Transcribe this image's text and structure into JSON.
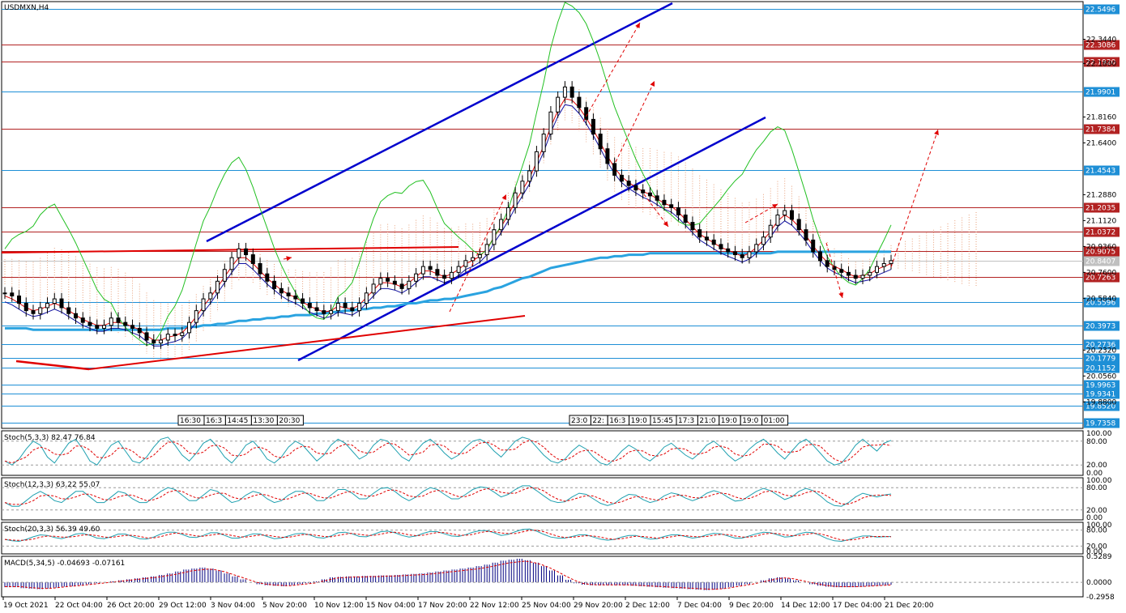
{
  "symbol": "USDMXN,H4",
  "chart_data": {
    "type": "candlestick",
    "title": "USDMXN,H4",
    "ylim": [
      19.7,
      22.6
    ],
    "price_ticks": [
      "22.3440",
      "22.1800",
      "21.8160",
      "21.6400",
      "21.2880",
      "21.1120",
      "20.9360",
      "20.7600",
      "20.5840",
      "20.2320",
      "20.0560",
      "19.8800"
    ],
    "levels": [
      {
        "price": "22.5496",
        "color": "#1e8fd6"
      },
      {
        "price": "22.3086",
        "color": "#b22222"
      },
      {
        "price": "22.1920",
        "color": "#b22222"
      },
      {
        "price": "21.9901",
        "color": "#1e8fd6"
      },
      {
        "price": "21.7384",
        "color": "#b22222"
      },
      {
        "price": "21.4543",
        "color": "#1e8fd6"
      },
      {
        "price": "21.2035",
        "color": "#b22222"
      },
      {
        "price": "21.0372",
        "color": "#b22222"
      },
      {
        "price": "20.9075",
        "color": "#b22222"
      },
      {
        "price": "20.8407",
        "color": "#c0c0c0"
      },
      {
        "price": "20.7263",
        "color": "#b22222"
      },
      {
        "price": "20.5596",
        "color": "#1e8fd6"
      },
      {
        "price": "20.3973",
        "color": "#1e8fd6"
      },
      {
        "price": "20.2736",
        "color": "#1e8fd6"
      },
      {
        "price": "20.1779",
        "color": "#1e8fd6"
      },
      {
        "price": "20.1152",
        "color": "#1e8fd6"
      },
      {
        "price": "19.9963",
        "color": "#1e8fd6"
      },
      {
        "price": "19.9341",
        "color": "#1e8fd6"
      },
      {
        "price": "19.8520",
        "color": "#1e8fd6"
      },
      {
        "price": "19.7358",
        "color": "#1e8fd6"
      }
    ],
    "x_labels": [
      "19 Oct 2021",
      "22 Oct 04:00",
      "26 Oct 20:00",
      "29 Oct 12:00",
      "3 Nov 04:00",
      "5 Nov 20:00",
      "10 Nov 12:00",
      "15 Nov 04:00",
      "17 Nov 20:00",
      "22 Nov 12:00",
      "25 Nov 04:00",
      "29 Nov 20:00",
      "2 Dec 12:00",
      "7 Dec 04:00",
      "9 Dec 20:00",
      "14 Dec 12:00",
      "17 Dec 04:00",
      "21 Dec 20:00"
    ],
    "time_tags_left": [
      "16:30",
      "16:3",
      "14:45",
      "13:30",
      "20:30"
    ],
    "time_tags_right": [
      "23:0",
      "22:",
      "16:3",
      "19:0",
      "15:45",
      "17:3",
      "21:0",
      "19:0",
      "19:0",
      "01:00"
    ],
    "close": [
      20.62,
      20.6,
      20.55,
      20.5,
      20.48,
      20.52,
      20.55,
      20.58,
      20.52,
      20.48,
      20.45,
      20.42,
      20.4,
      20.38,
      20.4,
      20.45,
      20.42,
      20.4,
      20.38,
      20.35,
      20.3,
      20.28,
      20.3,
      20.34,
      20.33,
      20.35,
      20.42,
      20.5,
      20.58,
      20.62,
      20.7,
      20.78,
      20.86,
      20.92,
      20.88,
      20.82,
      20.75,
      20.7,
      20.65,
      20.62,
      20.6,
      20.58,
      20.55,
      20.52,
      20.5,
      20.48,
      20.5,
      20.55,
      20.52,
      20.5,
      20.55,
      20.62,
      20.68,
      20.72,
      20.7,
      20.68,
      20.65,
      20.7,
      20.75,
      20.8,
      20.78,
      20.74,
      20.72,
      20.76,
      20.8,
      20.84,
      20.86,
      20.88,
      20.95,
      21.05,
      21.12,
      21.2,
      21.3,
      21.38,
      21.45,
      21.58,
      21.7,
      21.85,
      21.95,
      22.02,
      21.95,
      21.88,
      21.8,
      21.7,
      21.6,
      21.5,
      21.42,
      21.38,
      21.35,
      21.32,
      21.3,
      21.28,
      21.25,
      21.22,
      21.2,
      21.15,
      21.1,
      21.05,
      21.0,
      20.98,
      20.95,
      20.92,
      20.9,
      20.88,
      20.86,
      20.9,
      20.95,
      21.0,
      21.08,
      21.15,
      21.18,
      21.12,
      21.05,
      20.98,
      20.9,
      20.84,
      20.8,
      20.78,
      20.76,
      20.74,
      20.72,
      20.74,
      20.76,
      20.8,
      20.82,
      20.84
    ],
    "ma_fast": [
      20.6,
      20.58,
      20.55,
      20.52,
      20.5,
      20.51,
      20.53,
      20.55,
      20.53,
      20.5,
      20.47,
      20.44,
      20.42,
      20.4,
      20.4,
      20.42,
      20.42,
      20.41,
      20.39,
      20.37,
      20.33,
      20.3,
      20.3,
      20.32,
      20.33,
      20.35,
      20.4,
      20.46,
      20.53,
      20.59,
      20.66,
      20.73,
      20.8,
      20.86,
      20.86,
      20.82,
      20.77,
      20.72,
      20.68,
      20.64,
      20.61,
      20.59,
      20.56,
      20.53,
      20.51,
      20.49,
      20.5,
      20.53,
      20.52,
      20.51,
      20.54,
      20.59,
      20.64,
      20.69,
      20.69,
      20.68,
      20.66,
      20.69,
      20.73,
      20.77,
      20.77,
      20.75,
      20.73,
      20.75,
      20.78,
      20.82,
      20.84,
      20.87,
      20.92,
      21.0,
      21.07,
      21.15,
      21.24,
      21.32,
      21.4,
      21.51,
      21.62,
      21.75,
      21.86,
      21.94,
      21.93,
      21.88,
      21.81,
      21.73,
      21.64,
      21.55,
      21.47,
      21.41,
      21.37,
      21.34,
      21.31,
      21.29,
      21.26,
      21.23,
      21.21,
      21.17,
      21.12,
      21.07,
      21.02,
      20.99,
      20.96,
      20.93,
      20.91,
      20.89,
      20.87,
      20.89,
      20.93,
      20.98,
      21.04,
      21.11,
      21.15,
      21.12,
      21.07,
      21.01,
      20.94,
      20.88,
      20.83,
      20.8,
      20.78,
      20.75,
      20.73,
      20.74,
      20.75,
      20.78,
      20.8,
      20.82
    ],
    "ma_slow": [
      20.38,
      20.38,
      20.38,
      20.38,
      20.37,
      20.37,
      20.37,
      20.37,
      20.37,
      20.37,
      20.37,
      20.37,
      20.37,
      20.37,
      20.37,
      20.37,
      20.37,
      20.37,
      20.37,
      20.37,
      20.37,
      20.37,
      20.37,
      20.38,
      20.38,
      20.38,
      20.39,
      20.39,
      20.4,
      20.4,
      20.41,
      20.41,
      20.42,
      20.43,
      20.43,
      20.44,
      20.44,
      20.45,
      20.45,
      20.46,
      20.46,
      20.47,
      20.47,
      20.47,
      20.48,
      20.48,
      20.49,
      20.49,
      20.5,
      20.5,
      20.51,
      20.51,
      20.52,
      20.52,
      20.53,
      20.53,
      20.54,
      20.55,
      20.55,
      20.56,
      20.57,
      20.57,
      20.58,
      20.58,
      20.59,
      20.6,
      20.61,
      20.62,
      20.63,
      20.65,
      20.66,
      20.68,
      20.7,
      20.72,
      20.73,
      20.75,
      20.77,
      20.79,
      20.8,
      20.81,
      20.82,
      20.83,
      20.84,
      20.85,
      20.86,
      20.86,
      20.87,
      20.87,
      20.88,
      20.88,
      20.88,
      20.89,
      20.89,
      20.89,
      20.89,
      20.89,
      20.89,
      20.89,
      20.89,
      20.89,
      20.89,
      20.89,
      20.89,
      20.89,
      20.89,
      20.89,
      20.89,
      20.89,
      20.89,
      20.9,
      20.9,
      20.9,
      20.9,
      20.9,
      20.9,
      20.9,
      20.9,
      20.9,
      20.9,
      20.9,
      20.9,
      20.9,
      20.9,
      20.9,
      20.9,
      20.9
    ],
    "indicators": [
      {
        "name": "Stoch(5,3,3)",
        "main": "82.47",
        "signal": "76.84",
        "ticks": [
          "100.00",
          "80.00",
          "20.00",
          "0.00"
        ],
        "values": [
          30,
          20,
          35,
          60,
          80,
          70,
          40,
          25,
          50,
          75,
          85,
          60,
          30,
          20,
          45,
          70,
          80,
          55,
          30,
          25,
          40,
          65,
          85,
          90,
          70,
          45,
          30,
          50,
          75,
          85,
          65,
          40,
          25,
          45,
          70,
          80,
          60,
          35,
          25,
          40,
          65,
          80,
          70,
          50,
          30,
          45,
          70,
          85,
          75,
          55,
          35,
          45,
          70,
          85,
          80,
          60,
          40,
          30,
          55,
          75,
          85,
          70,
          50,
          35,
          45,
          65,
          80,
          85,
          75,
          55,
          40,
          60,
          80,
          90,
          85,
          65,
          45,
          30,
          25,
          35,
          55,
          70,
          60,
          40,
          25,
          20,
          35,
          55,
          70,
          60,
          40,
          30,
          45,
          65,
          75,
          60,
          45,
          35,
          50,
          70,
          80,
          65,
          45,
          30,
          40,
          60,
          75,
          85,
          70,
          50,
          35,
          55,
          75,
          85,
          70,
          50,
          30,
          20,
          25,
          45,
          70,
          85,
          70,
          55,
          75,
          82
        ]
      },
      {
        "name": "Stoch(12,3,3)",
        "main": "63.22",
        "signal": "55.07",
        "ticks": [
          "100.00",
          "80.00",
          "20.00",
          "0.00"
        ],
        "values": [
          40,
          30,
          30,
          45,
          60,
          70,
          60,
          45,
          40,
          55,
          70,
          70,
          55,
          40,
          40,
          55,
          70,
          65,
          50,
          40,
          40,
          55,
          70,
          80,
          75,
          60,
          45,
          45,
          60,
          75,
          70,
          55,
          40,
          45,
          60,
          70,
          65,
          50,
          40,
          45,
          60,
          70,
          70,
          60,
          45,
          45,
          60,
          75,
          75,
          65,
          50,
          50,
          65,
          78,
          80,
          70,
          55,
          45,
          55,
          70,
          80,
          75,
          62,
          50,
          50,
          62,
          75,
          82,
          80,
          68,
          55,
          62,
          75,
          85,
          85,
          72,
          58,
          45,
          40,
          42,
          55,
          65,
          62,
          50,
          38,
          32,
          38,
          52,
          62,
          60,
          48,
          40,
          45,
          58,
          66,
          62,
          52,
          45,
          52,
          65,
          72,
          66,
          54,
          44,
          46,
          58,
          70,
          78,
          72,
          60,
          48,
          55,
          70,
          78,
          72,
          58,
          42,
          32,
          30,
          40,
          55,
          65,
          60,
          55,
          60,
          63
        ]
      },
      {
        "name": "Stoch(20,3,3)",
        "main": "56.39",
        "signal": "49.60",
        "ticks": [
          "100.00",
          "80.00",
          "20.00",
          "0.00"
        ],
        "values": [
          45,
          40,
          38,
          45,
          55,
          62,
          60,
          52,
          48,
          55,
          65,
          68,
          60,
          50,
          48,
          55,
          65,
          65,
          56,
          48,
          46,
          54,
          65,
          72,
          72,
          64,
          54,
          52,
          60,
          70,
          70,
          60,
          50,
          50,
          58,
          66,
          65,
          56,
          48,
          50,
          58,
          66,
          68,
          62,
          52,
          50,
          58,
          70,
          72,
          66,
          56,
          55,
          64,
          74,
          76,
          70,
          60,
          54,
          58,
          68,
          75,
          74,
          66,
          58,
          56,
          63,
          72,
          78,
          78,
          70,
          60,
          64,
          74,
          82,
          84,
          76,
          64,
          54,
          50,
          50,
          56,
          62,
          62,
          54,
          46,
          42,
          45,
          54,
          60,
          60,
          52,
          46,
          48,
          56,
          62,
          62,
          56,
          50,
          54,
          62,
          68,
          66,
          58,
          50,
          50,
          58,
          66,
          72,
          70,
          62,
          54,
          56,
          66,
          72,
          70,
          60,
          48,
          40,
          38,
          44,
          52,
          58,
          58,
          54,
          55,
          56
        ]
      }
    ],
    "macd": {
      "name": "MACD(5,34,5)",
      "main": "-0.04693",
      "signal": "-0.07161",
      "ticks": [
        "0.5289",
        "0.0000",
        "-0.2958"
      ],
      "values": [
        -0.1,
        -0.1,
        -0.12,
        -0.13,
        -0.14,
        -0.13,
        -0.11,
        -0.09,
        -0.08,
        -0.06,
        -0.04,
        -0.02,
        0.0,
        0.02,
        0.04,
        0.06,
        0.08,
        0.1,
        0.12,
        0.15,
        0.18,
        0.22,
        0.26,
        0.28,
        0.3,
        0.28,
        0.24,
        0.18,
        0.12,
        0.06,
        0.0,
        -0.04,
        -0.06,
        -0.07,
        -0.08,
        -0.06,
        -0.04,
        -0.02,
        0.02,
        0.06,
        0.1,
        0.11,
        0.12,
        0.12,
        0.13,
        0.13,
        0.14,
        0.14,
        0.15,
        0.16,
        0.17,
        0.18,
        0.2,
        0.22,
        0.24,
        0.26,
        0.28,
        0.3,
        0.33,
        0.36,
        0.4,
        0.44,
        0.46,
        0.48,
        0.45,
        0.4,
        0.33,
        0.24,
        0.14,
        0.05,
        -0.02,
        -0.05,
        -0.06,
        -0.06,
        -0.06,
        -0.06,
        -0.06,
        -0.07,
        -0.08,
        -0.09,
        -0.1,
        -0.11,
        -0.12,
        -0.13,
        -0.14,
        -0.15,
        -0.16,
        -0.15,
        -0.13,
        -0.1,
        -0.07,
        -0.04,
        0.0,
        0.04,
        0.08,
        0.1,
        0.08,
        0.04,
        0.0,
        -0.04,
        -0.07,
        -0.09,
        -0.1,
        -0.1,
        -0.1,
        -0.09,
        -0.08,
        -0.07,
        -0.06,
        -0.05
      ]
    }
  }
}
